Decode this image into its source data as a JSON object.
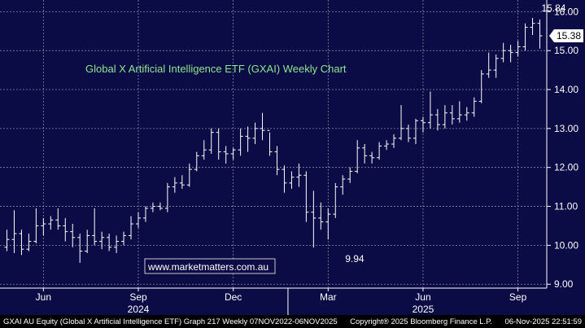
{
  "chart_data": {
    "type": "ohlc",
    "title": "Global X Artificial Intelligence ETF (GXAI) Weekly Chart",
    "watermark": "www.marketmatters.com.au",
    "y_axis": {
      "position": "right",
      "ylim": [
        8.9,
        16.3
      ],
      "ticks": [
        "16.00",
        "15.00",
        "14.00",
        "13.00",
        "12.00",
        "11.00",
        "10.00",
        "9.00"
      ],
      "tick_values": [
        16,
        15,
        14,
        13,
        12,
        11,
        10,
        9
      ]
    },
    "x_axis": {
      "month_labels": [
        "Jun",
        "Sep",
        "Dec",
        "Mar",
        "Jun",
        "Sep"
      ],
      "year_labels": [
        "2024",
        "2025"
      ],
      "month_index": [
        5,
        18,
        31,
        44,
        57,
        70
      ],
      "year_index": [
        18,
        57
      ],
      "year_divider_index": 38.5
    },
    "price_label": "15.38",
    "annotations": [
      {
        "text": "15.84",
        "index": 75,
        "value": 15.84
      },
      {
        "text": "9.94",
        "index": 46,
        "value": 9.94
      }
    ],
    "bars": [
      {
        "o": 9.95,
        "h": 10.4,
        "l": 9.85,
        "c": 10.15
      },
      {
        "o": 10.15,
        "h": 10.9,
        "l": 9.8,
        "c": 10.3
      },
      {
        "o": 10.3,
        "h": 10.4,
        "l": 9.75,
        "c": 9.9
      },
      {
        "o": 9.9,
        "h": 10.3,
        "l": 9.85,
        "c": 10.1
      },
      {
        "o": 10.1,
        "h": 10.95,
        "l": 10.05,
        "c": 10.5
      },
      {
        "o": 10.5,
        "h": 10.7,
        "l": 10.25,
        "c": 10.55
      },
      {
        "o": 10.55,
        "h": 10.75,
        "l": 10.4,
        "c": 10.65
      },
      {
        "o": 10.65,
        "h": 10.95,
        "l": 10.4,
        "c": 10.5
      },
      {
        "o": 10.5,
        "h": 10.7,
        "l": 10.1,
        "c": 10.35
      },
      {
        "o": 10.35,
        "h": 10.55,
        "l": 9.95,
        "c": 10.2
      },
      {
        "o": 10.2,
        "h": 10.3,
        "l": 9.55,
        "c": 9.85
      },
      {
        "o": 9.85,
        "h": 10.4,
        "l": 9.8,
        "c": 10.25
      },
      {
        "o": 10.25,
        "h": 10.95,
        "l": 10.0,
        "c": 10.1
      },
      {
        "o": 10.1,
        "h": 10.35,
        "l": 9.9,
        "c": 10.2
      },
      {
        "o": 10.2,
        "h": 10.3,
        "l": 9.85,
        "c": 9.95
      },
      {
        "o": 9.95,
        "h": 10.25,
        "l": 9.8,
        "c": 10.1
      },
      {
        "o": 10.1,
        "h": 10.35,
        "l": 10.0,
        "c": 10.25
      },
      {
        "o": 10.25,
        "h": 10.75,
        "l": 10.15,
        "c": 10.55
      },
      {
        "o": 10.55,
        "h": 10.85,
        "l": 10.45,
        "c": 10.7
      },
      {
        "o": 10.7,
        "h": 11.0,
        "l": 10.6,
        "c": 10.95
      },
      {
        "o": 10.95,
        "h": 11.1,
        "l": 10.85,
        "c": 11.0
      },
      {
        "o": 11.0,
        "h": 11.1,
        "l": 10.9,
        "c": 10.95
      },
      {
        "o": 10.95,
        "h": 11.6,
        "l": 10.85,
        "c": 11.5
      },
      {
        "o": 11.5,
        "h": 11.75,
        "l": 11.35,
        "c": 11.6
      },
      {
        "o": 11.6,
        "h": 11.8,
        "l": 11.45,
        "c": 11.55
      },
      {
        "o": 11.55,
        "h": 12.1,
        "l": 11.5,
        "c": 11.95
      },
      {
        "o": 11.95,
        "h": 12.4,
        "l": 11.9,
        "c": 12.3
      },
      {
        "o": 12.3,
        "h": 12.7,
        "l": 12.2,
        "c": 12.45
      },
      {
        "o": 12.45,
        "h": 13.0,
        "l": 12.35,
        "c": 12.9
      },
      {
        "o": 12.9,
        "h": 13.0,
        "l": 12.2,
        "c": 12.4
      },
      {
        "o": 12.4,
        "h": 12.55,
        "l": 12.1,
        "c": 12.35
      },
      {
        "o": 12.35,
        "h": 12.5,
        "l": 12.2,
        "c": 12.45
      },
      {
        "o": 12.45,
        "h": 13.0,
        "l": 12.3,
        "c": 12.8
      },
      {
        "o": 12.8,
        "h": 13.05,
        "l": 12.4,
        "c": 12.75
      },
      {
        "o": 12.75,
        "h": 13.15,
        "l": 12.6,
        "c": 13.0
      },
      {
        "o": 13.0,
        "h": 13.4,
        "l": 12.7,
        "c": 12.95
      },
      {
        "o": 12.95,
        "h": 12.9,
        "l": 12.3,
        "c": 12.4
      },
      {
        "o": 12.4,
        "h": 12.55,
        "l": 11.8,
        "c": 11.95
      },
      {
        "o": 11.95,
        "h": 12.05,
        "l": 11.35,
        "c": 11.6
      },
      {
        "o": 11.6,
        "h": 11.9,
        "l": 11.45,
        "c": 11.75
      },
      {
        "o": 11.75,
        "h": 12.1,
        "l": 11.5,
        "c": 11.8
      },
      {
        "o": 11.8,
        "h": 11.9,
        "l": 10.6,
        "c": 10.85
      },
      {
        "o": 10.85,
        "h": 11.4,
        "l": 9.94,
        "c": 10.7
      },
      {
        "o": 10.7,
        "h": 11.1,
        "l": 10.4,
        "c": 10.6
      },
      {
        "o": 10.6,
        "h": 10.95,
        "l": 10.15,
        "c": 10.8
      },
      {
        "o": 10.8,
        "h": 11.6,
        "l": 10.7,
        "c": 11.5
      },
      {
        "o": 11.5,
        "h": 11.8,
        "l": 11.3,
        "c": 11.7
      },
      {
        "o": 11.7,
        "h": 12.0,
        "l": 11.6,
        "c": 11.9
      },
      {
        "o": 11.9,
        "h": 12.7,
        "l": 11.85,
        "c": 12.5
      },
      {
        "o": 12.5,
        "h": 12.6,
        "l": 12.1,
        "c": 12.3
      },
      {
        "o": 12.3,
        "h": 12.4,
        "l": 12.1,
        "c": 12.25
      },
      {
        "o": 12.25,
        "h": 12.65,
        "l": 12.2,
        "c": 12.55
      },
      {
        "o": 12.55,
        "h": 12.7,
        "l": 12.45,
        "c": 12.6
      },
      {
        "o": 12.6,
        "h": 12.85,
        "l": 12.5,
        "c": 12.75
      },
      {
        "o": 12.75,
        "h": 13.6,
        "l": 12.7,
        "c": 13.0
      },
      {
        "o": 13.0,
        "h": 13.1,
        "l": 12.65,
        "c": 12.75
      },
      {
        "o": 12.75,
        "h": 13.25,
        "l": 12.6,
        "c": 13.2
      },
      {
        "o": 13.2,
        "h": 13.3,
        "l": 12.9,
        "c": 13.15
      },
      {
        "o": 13.15,
        "h": 13.95,
        "l": 13.0,
        "c": 13.35
      },
      {
        "o": 13.35,
        "h": 13.5,
        "l": 12.95,
        "c": 13.1
      },
      {
        "o": 13.1,
        "h": 13.6,
        "l": 13.0,
        "c": 13.4
      },
      {
        "o": 13.4,
        "h": 13.6,
        "l": 13.1,
        "c": 13.25
      },
      {
        "o": 13.25,
        "h": 13.7,
        "l": 13.15,
        "c": 13.35
      },
      {
        "o": 13.35,
        "h": 13.55,
        "l": 13.2,
        "c": 13.4
      },
      {
        "o": 13.4,
        "h": 13.8,
        "l": 13.3,
        "c": 13.7
      },
      {
        "o": 13.7,
        "h": 14.5,
        "l": 13.65,
        "c": 14.4
      },
      {
        "o": 14.4,
        "h": 14.95,
        "l": 14.3,
        "c": 14.5
      },
      {
        "o": 14.5,
        "h": 14.9,
        "l": 14.3,
        "c": 14.8
      },
      {
        "o": 14.8,
        "h": 15.2,
        "l": 14.7,
        "c": 15.0
      },
      {
        "o": 15.0,
        "h": 15.15,
        "l": 14.7,
        "c": 14.95
      },
      {
        "o": 14.95,
        "h": 15.25,
        "l": 14.85,
        "c": 15.1
      },
      {
        "o": 15.1,
        "h": 15.7,
        "l": 15.0,
        "c": 15.6
      },
      {
        "o": 15.6,
        "h": 15.84,
        "l": 15.4,
        "c": 15.7
      },
      {
        "o": 15.7,
        "h": 15.8,
        "l": 15.05,
        "c": 15.38
      }
    ]
  },
  "footer": {
    "left": "GXAI AU Equity (Global X Artificial Intelligence ETF) Graph 217 Weekly 07NOV2022-06NOV2025",
    "middle": "Copyright® 2025 Bloomberg Finance L.P.",
    "right": "06-Nov-2025 22:51:59"
  },
  "colors": {
    "background": "#0b0b45",
    "bar": "#ffffff",
    "title": "#8ee68e",
    "grid": "#8a8aa6",
    "axis_text": "#ffffff",
    "price_label_bg": "#ffffff",
    "price_label_text": "#000000",
    "watermark_border": "#c8c8c8",
    "watermark_text": "#ffffff"
  }
}
